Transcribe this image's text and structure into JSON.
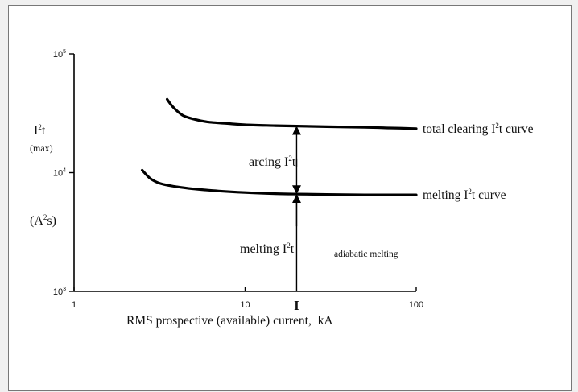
{
  "chart_data": {
    "type": "line",
    "xscale": "log",
    "yscale": "log",
    "xlim": [
      1,
      100
    ],
    "ylim": [
      1000,
      100000
    ],
    "xlabel": "RMS prospective (available) current,  kA",
    "ylabel": {
      "main": "I²t",
      "sub": "(max)",
      "unit": "(A²s)"
    },
    "x_ticks": [
      {
        "value": 1,
        "label": "1"
      },
      {
        "value": 10,
        "label": "10"
      },
      {
        "value": 100,
        "label": "100"
      }
    ],
    "y_ticks": [
      {
        "value": 1000,
        "base": "10",
        "exp": "3"
      },
      {
        "value": 10000,
        "base": "10",
        "exp": "4"
      },
      {
        "value": 100000,
        "base": "10",
        "exp": "5"
      }
    ],
    "grid": false,
    "series": [
      {
        "name": "total clearing I²t curve",
        "color": "#000000",
        "x": [
          3.5,
          3.8,
          4.3,
          5,
          6,
          8,
          10,
          15,
          20,
          30,
          50,
          70,
          100
        ],
        "y": [
          41500,
          35500,
          30500,
          28300,
          26800,
          25900,
          25300,
          24900,
          24700,
          24400,
          24100,
          23800,
          23500
        ]
      },
      {
        "name": "melting I²t curve",
        "color": "#000000",
        "x": [
          2.5,
          2.8,
          3.2,
          4,
          5,
          7,
          10,
          15,
          20,
          30,
          50,
          70,
          100
        ],
        "y": [
          10500,
          8900,
          8100,
          7600,
          7300,
          7000,
          6800,
          6650,
          6600,
          6550,
          6500,
          6500,
          6500
        ]
      }
    ],
    "annotations": {
      "current_marker": {
        "x": 20,
        "label": "I"
      },
      "arcing": {
        "label": "arcing I²t"
      },
      "melting": {
        "label": "melting I²t"
      },
      "adiabatic": {
        "label": "adiabatic melting"
      }
    }
  }
}
